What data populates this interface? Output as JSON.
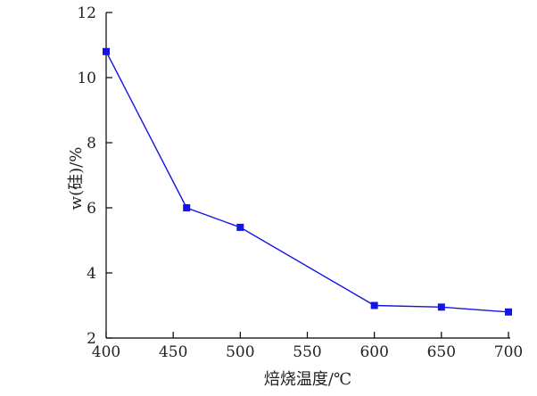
{
  "chart_data": {
    "type": "line",
    "title": "",
    "xlabel": "焙烧温度/℃",
    "ylabel": "w(硅)/%",
    "xlim": [
      400,
      700
    ],
    "ylim": [
      2,
      12
    ],
    "xticks": [
      400,
      450,
      500,
      550,
      600,
      650,
      700
    ],
    "yticks": [
      2,
      4,
      6,
      8,
      10,
      12
    ],
    "grid": false,
    "legend": "none",
    "series": [
      {
        "x": [
          400,
          460,
          500,
          600,
          650,
          700
        ],
        "values": [
          10.8,
          6.0,
          5.4,
          3.0,
          2.95,
          2.8
        ],
        "color": "#1414e6",
        "marker": "square"
      }
    ]
  }
}
